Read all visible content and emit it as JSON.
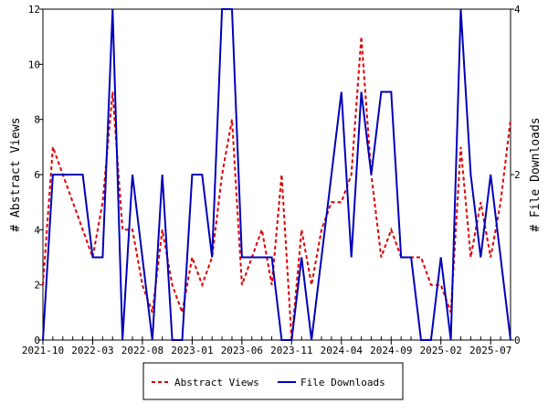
{
  "chart_data": {
    "type": "line",
    "title": "",
    "xlabel": "",
    "ylabel": "# Abstract Views",
    "y2label": "# File Downloads",
    "ylim": [
      0,
      12
    ],
    "y2lim": [
      0,
      4
    ],
    "yticks": [
      0,
      2,
      4,
      6,
      8,
      10,
      12
    ],
    "y2ticks": [
      0,
      2,
      4
    ],
    "x_tick_labels": [
      "2021-10",
      "2022-03",
      "2022-08",
      "2023-01",
      "2023-06",
      "2023-11",
      "2024-04",
      "2024-09",
      "2025-02",
      "2025-07"
    ],
    "x": [
      "2021-10",
      "2021-11",
      "2021-12",
      "2022-01",
      "2022-02",
      "2022-03",
      "2022-04",
      "2022-05",
      "2022-06",
      "2022-07",
      "2022-08",
      "2022-09",
      "2022-10",
      "2022-11",
      "2022-12",
      "2023-01",
      "2023-02",
      "2023-03",
      "2023-04",
      "2023-05",
      "2023-06",
      "2023-07",
      "2023-08",
      "2023-09",
      "2023-10",
      "2023-11",
      "2023-12",
      "2024-01",
      "2024-02",
      "2024-03",
      "2024-04",
      "2024-05",
      "2024-06",
      "2024-07",
      "2024-08",
      "2024-09",
      "2024-10",
      "2024-11",
      "2024-12",
      "2025-01",
      "2025-02",
      "2025-03",
      "2025-04",
      "2025-05",
      "2025-06",
      "2025-07",
      "2025-08",
      "2025-09"
    ],
    "series": [
      {
        "name": "Abstract Views",
        "axis": "left",
        "color": "#dd0000",
        "style": "dashed",
        "values": [
          2,
          7,
          6,
          5,
          4,
          3,
          5,
          9,
          4,
          4,
          2,
          1,
          4,
          2,
          1,
          3,
          2,
          3,
          6,
          8,
          2,
          3,
          4,
          2,
          6,
          0,
          4,
          2,
          4,
          5,
          5,
          6,
          11,
          6,
          3,
          4,
          3,
          3,
          3,
          2,
          2,
          1,
          7,
          3,
          5,
          3,
          5,
          8
        ]
      },
      {
        "name": "File Downloads",
        "axis": "right",
        "color": "#0000bb",
        "style": "solid",
        "values": [
          0,
          2,
          2,
          2,
          2,
          1,
          1,
          4,
          0,
          2,
          1,
          0,
          2,
          0,
          0,
          2,
          2,
          1,
          4,
          4,
          1,
          1,
          1,
          1,
          0,
          0,
          1,
          0,
          1,
          2,
          3,
          1,
          3,
          2,
          3,
          3,
          1,
          1,
          0,
          0,
          1,
          0,
          4,
          2,
          1,
          2,
          1,
          0
        ]
      }
    ],
    "legend_position": "bottom-center",
    "grid": false
  }
}
